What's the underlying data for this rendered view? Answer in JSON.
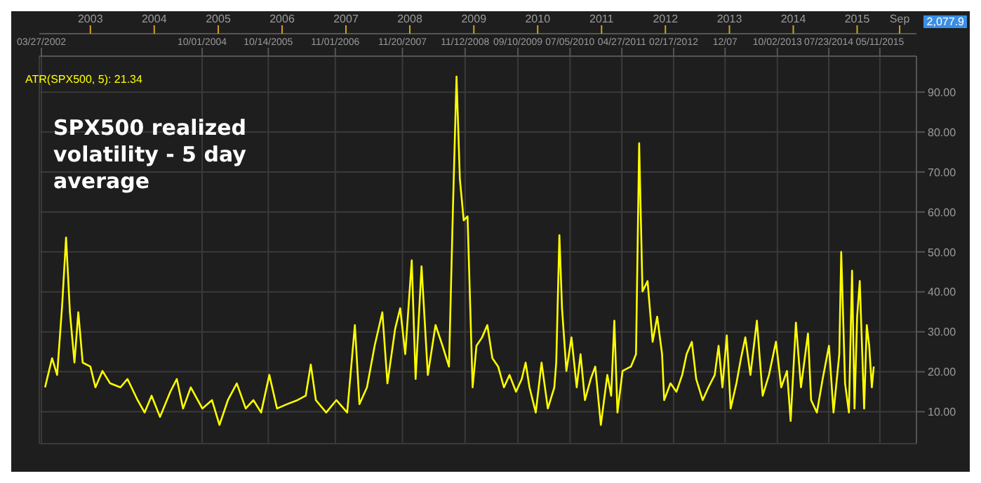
{
  "chart_data": {
    "type": "line",
    "title": "SPX500 realized volatility - 5 day average",
    "annotations": [
      "2,077.9"
    ],
    "x": [
      "2002-04-17",
      "2002-05-27",
      "2002-06-25",
      "2002-07-24",
      "2002-08-15",
      "2002-09-06",
      "2002-10-02",
      "2002-10-24",
      "2002-11-18",
      "2003-01-01",
      "2003-01-30",
      "2003-03-11",
      "2003-04-24",
      "2003-06-22",
      "2003-08-01",
      "2003-09-28",
      "2003-11-07",
      "2003-12-17",
      "2004-02-03",
      "2004-04-02",
      "2004-05-09",
      "2004-06-14",
      "2004-07-28",
      "2004-10-02",
      "2004-11-26",
      "2005-01-08",
      "2005-02-25",
      "2005-04-17",
      "2005-06-07",
      "2005-07-21",
      "2005-09-03",
      "2005-10-20",
      "2005-12-03",
      "2006-01-30",
      "2006-03-30",
      "2006-05-16",
      "2006-06-14",
      "2006-07-13",
      "2006-09-10",
      "2006-11-07",
      "2007-01-08",
      "2007-02-21",
      "2007-03-19",
      "2007-05-01",
      "2007-06-14",
      "2007-07-28",
      "2007-08-26",
      "2007-10-09",
      "2007-11-07",
      "2007-12-06",
      "2008-01-12",
      "2008-02-03",
      "2008-03-08",
      "2008-04-13",
      "2008-05-27",
      "2008-07-06",
      "2008-08-12",
      "2008-09-03",
      "2008-09-24",
      "2008-10-13",
      "2008-11-04",
      "2008-11-26",
      "2008-12-25",
      "2009-01-16",
      "2009-02-17",
      "2009-03-19",
      "2009-04-17",
      "2009-05-20",
      "2009-06-22",
      "2009-07-24",
      "2009-08-30",
      "2009-10-02",
      "2009-10-24",
      "2009-11-15",
      "2009-12-21",
      "2010-01-23",
      "2010-02-28",
      "2010-04-06",
      "2010-04-17",
      "2010-05-05",
      "2010-05-20",
      "2010-06-14",
      "2010-07-13",
      "2010-08-12",
      "2010-09-03",
      "2010-09-28",
      "2010-10-31",
      "2010-11-26",
      "2010-12-28",
      "2011-02-03",
      "2011-02-25",
      "2011-03-15",
      "2011-04-02",
      "2011-05-01",
      "2011-06-18",
      "2011-07-17",
      "2011-08-04",
      "2011-08-23",
      "2011-09-21",
      "2011-10-20",
      "2011-11-15",
      "2011-12-13",
      "2011-12-25",
      "2012-01-30",
      "2012-03-04",
      "2012-04-06",
      "2012-05-01",
      "2012-05-31",
      "2012-06-25",
      "2012-08-01",
      "2012-09-03",
      "2012-10-09",
      "2012-10-31",
      "2012-11-22",
      "2012-12-17",
      "2013-01-08",
      "2013-02-10",
      "2013-03-08",
      "2013-04-02",
      "2013-05-01",
      "2013-06-07",
      "2013-07-10",
      "2013-08-15",
      "2013-09-24",
      "2013-10-24",
      "2013-11-26",
      "2013-12-17",
      "2014-01-16",
      "2014-02-14",
      "2014-03-26",
      "2014-04-13",
      "2014-05-16",
      "2014-06-18",
      "2014-07-24",
      "2014-08-19",
      "2014-09-21",
      "2014-10-02",
      "2014-10-24",
      "2014-11-15",
      "2014-12-03",
      "2014-12-17",
      "2015-01-01",
      "2015-01-16",
      "2015-02-10",
      "2015-02-25",
      "2015-03-11",
      "2015-03-26",
      "2015-04-06"
    ],
    "series": [
      {
        "name": "ATR(SPX500, 5): 21.34",
        "color": "#ffff00",
        "values": [
          16.1,
          23.4,
          19.2,
          36.9,
          53.6,
          34.9,
          22.3,
          34.9,
          22.3,
          21.3,
          16.1,
          20.2,
          17.1,
          16.1,
          18.2,
          12.9,
          9.8,
          14,
          8.7,
          15,
          18.2,
          10.8,
          16.1,
          10.8,
          12.9,
          6.7,
          12.9,
          17.1,
          10.8,
          12.9,
          9.8,
          19.2,
          10.8,
          11.9,
          12.9,
          14,
          21.8,
          12.9,
          9.8,
          12.9,
          9.8,
          31.7,
          11.9,
          16.1,
          26.5,
          34.9,
          17.1,
          30.7,
          35.9,
          24.4,
          47.9,
          18.2,
          46.4,
          19.2,
          31.7,
          26.5,
          21.3,
          60,
          93.9,
          68.3,
          57.9,
          58.9,
          16.1,
          26.5,
          28.6,
          31.7,
          23.4,
          21.3,
          16.1,
          19.2,
          15,
          18.2,
          22.3,
          16.1,
          9.8,
          22.3,
          10.8,
          16.1,
          22.3,
          54.2,
          35.9,
          20.2,
          28.6,
          16.1,
          24.4,
          12.9,
          18.2,
          21.3,
          6.7,
          19.2,
          14,
          32.8,
          9.8,
          20.2,
          21.3,
          24.4,
          77.2,
          40.1,
          42.7,
          27.5,
          33.8,
          24.4,
          12.9,
          17.1,
          15,
          19.2,
          24.4,
          27.5,
          18.2,
          12.9,
          16.1,
          19.2,
          26.5,
          16.1,
          29.1,
          10.8,
          17.1,
          23.4,
          28.6,
          19.2,
          32.8,
          14,
          19.2,
          27.5,
          16.1,
          20.2,
          7.7,
          32.3,
          16.1,
          29.6,
          12.9,
          9.8,
          18.2,
          26.5,
          9.8,
          24.4,
          50,
          17.1,
          9.8,
          45.3,
          10.8,
          33.8,
          42.7,
          10.8,
          31.7,
          26.5,
          16.1,
          21.3
        ]
      }
    ],
    "xlim": [
      "2002-03-15",
      "2015-12-06"
    ],
    "xticks": [
      {
        "value": "2003-01-01",
        "label": "2003"
      },
      {
        "value": "2004-01-01",
        "label": "2004"
      },
      {
        "value": "2005-01-01",
        "label": "2005"
      },
      {
        "value": "2006-01-01",
        "label": "2006"
      },
      {
        "value": "2007-01-01",
        "label": "2007"
      },
      {
        "value": "2008-01-01",
        "label": "2008"
      },
      {
        "value": "2009-01-01",
        "label": "2009"
      },
      {
        "value": "2010-01-01",
        "label": "2010"
      },
      {
        "value": "2011-01-01",
        "label": "2011"
      },
      {
        "value": "2012-01-01",
        "label": "2012"
      },
      {
        "value": "2013-01-01",
        "label": "2013"
      },
      {
        "value": "2014-01-01",
        "label": "2014"
      },
      {
        "value": "2015-01-01",
        "label": "2015"
      },
      {
        "value": "2015-09-01",
        "label": "Sep"
      }
    ],
    "x2lim": [
      "2002-03-15",
      "2015-12-06"
    ],
    "x2ticks": [
      {
        "value": "2002-03-27",
        "label": "03/27/2002"
      },
      {
        "value": "2004-10-01",
        "label": "10/01/2004"
      },
      {
        "value": "2005-10-14",
        "label": "10/14/2005"
      },
      {
        "value": "2006-11-01",
        "label": "11/01/2006"
      },
      {
        "value": "2007-11-20",
        "label": "11/20/2007"
      },
      {
        "value": "2008-11-12",
        "label": "11/12/2008"
      },
      {
        "value": "2009-09-10",
        "label": "09/10/2009"
      },
      {
        "value": "2010-07-05",
        "label": "07/05/2010"
      },
      {
        "value": "2011-04-27",
        "label": "04/27/2011"
      },
      {
        "value": "2012-02-17",
        "label": "02/17/2012"
      },
      {
        "value": "2012-12-07",
        "label": "12/07"
      },
      {
        "value": "2013-10-02",
        "label": "10/02/2013"
      },
      {
        "value": "2014-07-23",
        "label": "07/23/2014"
      },
      {
        "value": "2015-05-11",
        "label": "05/11/2015"
      }
    ],
    "ylim": [
      2,
      99
    ],
    "yticks": [
      {
        "value": 10,
        "label": "10.00"
      },
      {
        "value": 20,
        "label": "20.00"
      },
      {
        "value": 30,
        "label": "30.00"
      },
      {
        "value": 40,
        "label": "40.00"
      },
      {
        "value": 50,
        "label": "50.00"
      },
      {
        "value": 60,
        "label": "60.00"
      },
      {
        "value": 70,
        "label": "70.00"
      },
      {
        "value": 80,
        "label": "80.00"
      },
      {
        "value": 90,
        "label": "90.00"
      }
    ],
    "grid": true,
    "legend": "top left",
    "marker": "none",
    "line_style": "solid"
  }
}
